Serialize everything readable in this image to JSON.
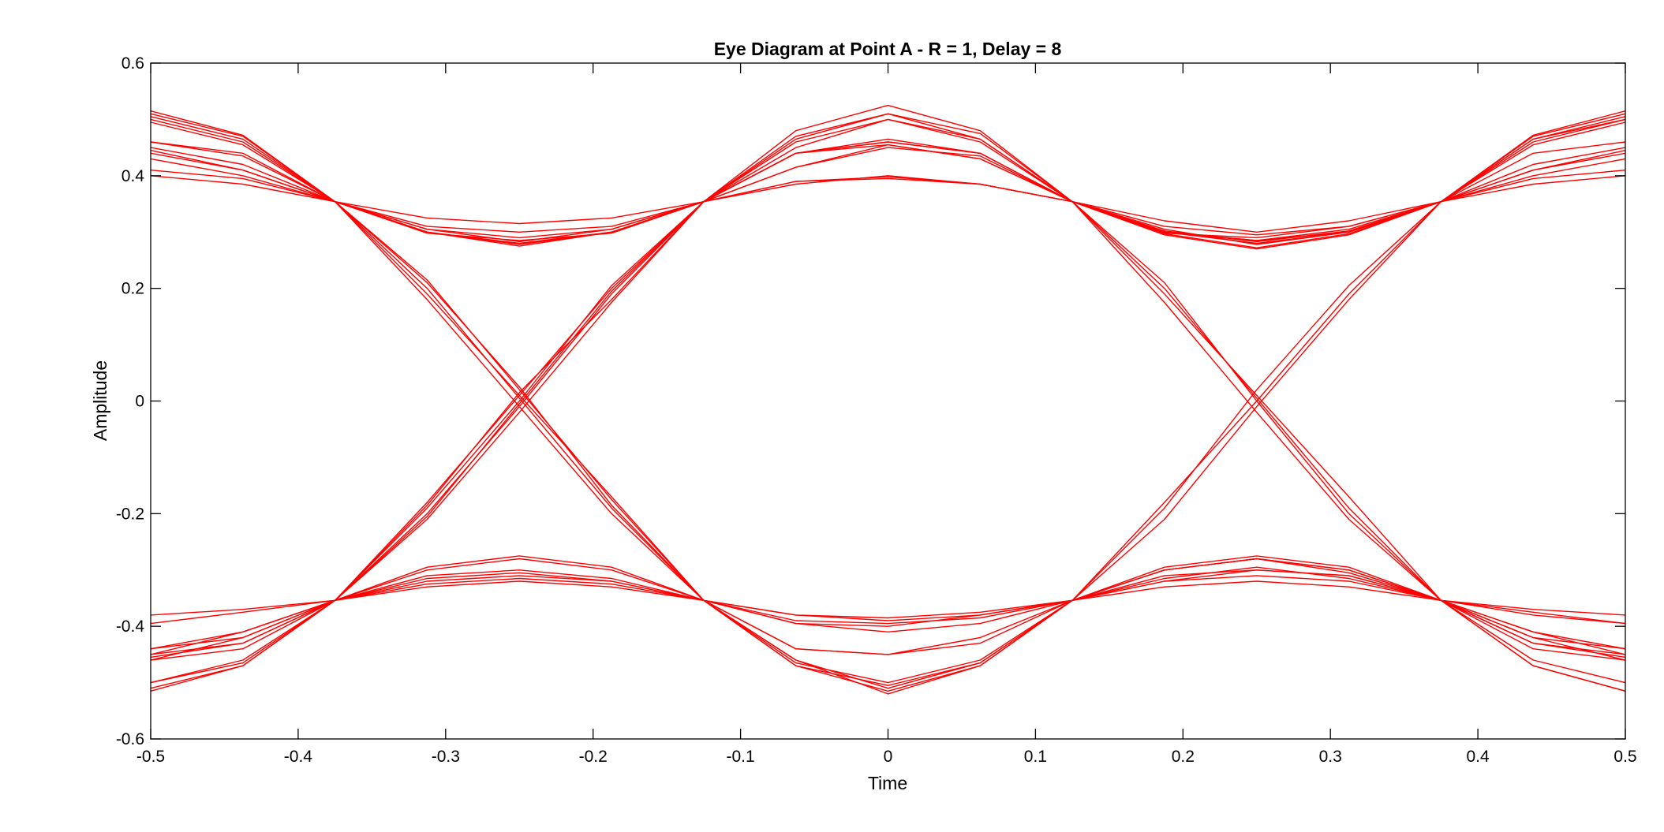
{
  "chart_data": {
    "type": "line",
    "title": "Eye Diagram at Point A - R = 1, Delay = 8",
    "xlabel": "Time",
    "ylabel": "Amplitude",
    "xlim": [
      -0.5,
      0.5
    ],
    "ylim": [
      -0.6,
      0.6
    ],
    "xticks": [
      -0.5,
      -0.4,
      -0.3,
      -0.2,
      -0.1,
      0,
      0.1,
      0.2,
      0.3,
      0.4,
      0.5
    ],
    "yticks": [
      -0.6,
      -0.4,
      -0.2,
      0,
      0.2,
      0.4,
      0.6
    ],
    "xtick_labels": [
      "-0.5",
      "-0.4",
      "-0.3",
      "-0.2",
      "-0.1",
      "0",
      "0.1",
      "0.2",
      "0.3",
      "0.4",
      "0.5"
    ],
    "ytick_labels": [
      "-0.6",
      "-0.4",
      "-0.2",
      "0",
      "0.2",
      "0.4",
      "0.6"
    ],
    "grid": false,
    "line_color": "#ff0000",
    "x": [
      -0.5,
      -0.4375,
      -0.375,
      -0.3125,
      -0.25,
      -0.1875,
      -0.125,
      -0.0625,
      0,
      0.0625,
      0.125,
      0.1875,
      0.25,
      0.3125,
      0.375,
      0.4375,
      0.5
    ],
    "series": [
      {
        "values": [
          0.515,
          0.472,
          0.354,
          0.3,
          0.28,
          0.3,
          0.354,
          0.48,
          0.525,
          0.48,
          0.354,
          0.297,
          0.272,
          0.297,
          0.354,
          0.472,
          0.515
        ]
      },
      {
        "values": [
          0.505,
          0.465,
          0.354,
          0.305,
          0.283,
          0.305,
          0.354,
          0.465,
          0.51,
          0.465,
          0.354,
          0.302,
          0.283,
          0.302,
          0.354,
          0.465,
          0.505
        ]
      },
      {
        "values": [
          0.495,
          0.455,
          0.354,
          0.325,
          0.315,
          0.325,
          0.354,
          0.44,
          0.465,
          0.44,
          0.354,
          0.32,
          0.3,
          0.32,
          0.354,
          0.455,
          0.495
        ]
      },
      {
        "values": [
          0.46,
          0.44,
          0.354,
          0.3,
          0.275,
          0.3,
          0.354,
          0.45,
          0.5,
          0.465,
          0.354,
          0.295,
          0.27,
          0.295,
          0.354,
          0.44,
          0.46
        ]
      },
      {
        "values": [
          0.45,
          0.42,
          0.354,
          0.298,
          0.285,
          0.298,
          0.354,
          0.415,
          0.455,
          0.43,
          0.354,
          0.298,
          0.29,
          0.31,
          0.354,
          0.42,
          0.45
        ]
      },
      {
        "values": [
          0.44,
          0.41,
          0.354,
          0.3,
          0.278,
          0.3,
          0.354,
          0.44,
          0.46,
          0.44,
          0.354,
          0.305,
          0.278,
          0.3,
          0.354,
          0.41,
          0.44
        ]
      },
      {
        "values": [
          0.41,
          0.395,
          0.354,
          0.31,
          0.3,
          0.31,
          0.354,
          0.385,
          0.4,
          0.385,
          0.354,
          0.31,
          0.295,
          0.31,
          0.354,
          0.395,
          0.41
        ]
      },
      {
        "values": [
          0.4,
          0.385,
          0.354,
          0.305,
          0.29,
          0.305,
          0.354,
          0.39,
          0.395,
          0.385,
          0.354,
          0.3,
          0.285,
          0.305,
          0.354,
          0.385,
          0.4
        ]
      },
      {
        "values": [
          0.51,
          0.47,
          0.354,
          0.19,
          0.01,
          -0.17,
          -0.354,
          -0.38,
          -0.39,
          -0.38,
          -0.354,
          -0.3,
          -0.28,
          -0.3,
          -0.354,
          -0.38,
          -0.395
        ]
      },
      {
        "values": [
          0.5,
          0.46,
          0.354,
          0.21,
          0.025,
          -0.185,
          -0.354,
          -0.44,
          -0.45,
          -0.43,
          -0.354,
          -0.18,
          0.0,
          0.19,
          0.354,
          0.46,
          0.5
        ]
      },
      {
        "values": [
          0.46,
          0.435,
          0.354,
          0.18,
          -0.01,
          -0.2,
          -0.354,
          -0.47,
          -0.505,
          -0.465,
          -0.354,
          -0.32,
          -0.3,
          -0.31,
          -0.354,
          -0.47,
          -0.515
        ]
      },
      {
        "values": [
          0.445,
          0.41,
          0.354,
          0.2,
          0.005,
          -0.19,
          -0.354,
          -0.395,
          -0.4,
          -0.38,
          -0.354,
          -0.19,
          0.02,
          0.205,
          0.354,
          0.41,
          0.445
        ]
      },
      {
        "values": [
          0.43,
          0.4,
          0.354,
          0.215,
          0.02,
          -0.175,
          -0.354,
          -0.46,
          -0.52,
          -0.47,
          -0.354,
          -0.21,
          -0.01,
          0.18,
          0.354,
          0.4,
          0.43
        ]
      },
      {
        "values": [
          -0.515,
          -0.47,
          -0.354,
          -0.3,
          -0.28,
          -0.3,
          -0.354,
          -0.47,
          -0.515,
          -0.47,
          -0.354,
          -0.3,
          -0.28,
          -0.3,
          -0.354,
          -0.47,
          -0.515
        ]
      },
      {
        "values": [
          -0.5,
          -0.46,
          -0.354,
          -0.31,
          -0.3,
          -0.315,
          -0.354,
          -0.44,
          -0.45,
          -0.42,
          -0.354,
          -0.295,
          -0.275,
          -0.295,
          -0.354,
          -0.46,
          -0.5
        ]
      },
      {
        "values": [
          -0.46,
          -0.44,
          -0.354,
          -0.295,
          -0.275,
          -0.295,
          -0.354,
          -0.38,
          -0.385,
          -0.375,
          -0.354,
          -0.31,
          -0.3,
          -0.31,
          -0.354,
          -0.44,
          -0.46
        ]
      },
      {
        "values": [
          -0.45,
          -0.41,
          -0.354,
          -0.315,
          -0.305,
          -0.32,
          -0.354,
          -0.465,
          -0.5,
          -0.46,
          -0.354,
          -0.315,
          -0.295,
          -0.315,
          -0.354,
          -0.41,
          -0.45
        ]
      },
      {
        "values": [
          -0.44,
          -0.42,
          -0.354,
          -0.32,
          -0.31,
          -0.32,
          -0.354,
          -0.395,
          -0.41,
          -0.395,
          -0.354,
          -0.32,
          -0.31,
          -0.32,
          -0.354,
          -0.42,
          -0.44
        ]
      },
      {
        "values": [
          -0.395,
          -0.375,
          -0.354,
          -0.33,
          -0.32,
          -0.33,
          -0.354,
          -0.39,
          -0.395,
          -0.385,
          -0.354,
          -0.33,
          -0.32,
          -0.33,
          -0.354,
          -0.375,
          -0.395
        ]
      },
      {
        "values": [
          -0.38,
          -0.37,
          -0.354,
          -0.325,
          -0.315,
          -0.325,
          -0.354,
          -0.46,
          -0.51,
          -0.465,
          -0.354,
          -0.3,
          -0.28,
          -0.305,
          -0.354,
          -0.37,
          -0.38
        ]
      },
      {
        "values": [
          -0.51,
          -0.47,
          -0.354,
          -0.2,
          -0.01,
          0.19,
          0.354,
          0.46,
          0.5,
          0.46,
          0.354,
          0.3,
          0.28,
          0.3,
          0.354,
          0.47,
          0.51
        ]
      },
      {
        "values": [
          -0.45,
          -0.43,
          -0.354,
          -0.18,
          0.01,
          0.2,
          0.354,
          0.44,
          0.455,
          0.43,
          0.354,
          0.19,
          0.01,
          -0.17,
          -0.354,
          -0.43,
          -0.45
        ]
      },
      {
        "values": [
          -0.46,
          -0.42,
          -0.354,
          -0.21,
          -0.02,
          0.175,
          0.354,
          0.415,
          0.45,
          0.435,
          0.354,
          0.21,
          0.0,
          -0.2,
          -0.354,
          -0.42,
          -0.46
        ]
      },
      {
        "values": [
          -0.44,
          -0.41,
          -0.354,
          -0.19,
          0.0,
          0.205,
          0.354,
          0.39,
          0.398,
          0.385,
          0.354,
          0.175,
          -0.02,
          -0.21,
          -0.354,
          -0.41,
          -0.44
        ]
      },
      {
        "values": [
          -0.5,
          -0.465,
          -0.354,
          -0.185,
          0.015,
          0.18,
          0.354,
          0.47,
          0.51,
          0.475,
          0.354,
          0.3,
          0.285,
          0.3,
          0.354,
          0.465,
          0.5
        ]
      },
      {
        "values": [
          -0.455,
          -0.43,
          -0.354,
          -0.205,
          -0.005,
          0.195,
          0.354,
          0.44,
          0.46,
          0.44,
          0.354,
          0.2,
          0.005,
          -0.19,
          -0.354,
          -0.43,
          -0.455
        ]
      }
    ]
  }
}
